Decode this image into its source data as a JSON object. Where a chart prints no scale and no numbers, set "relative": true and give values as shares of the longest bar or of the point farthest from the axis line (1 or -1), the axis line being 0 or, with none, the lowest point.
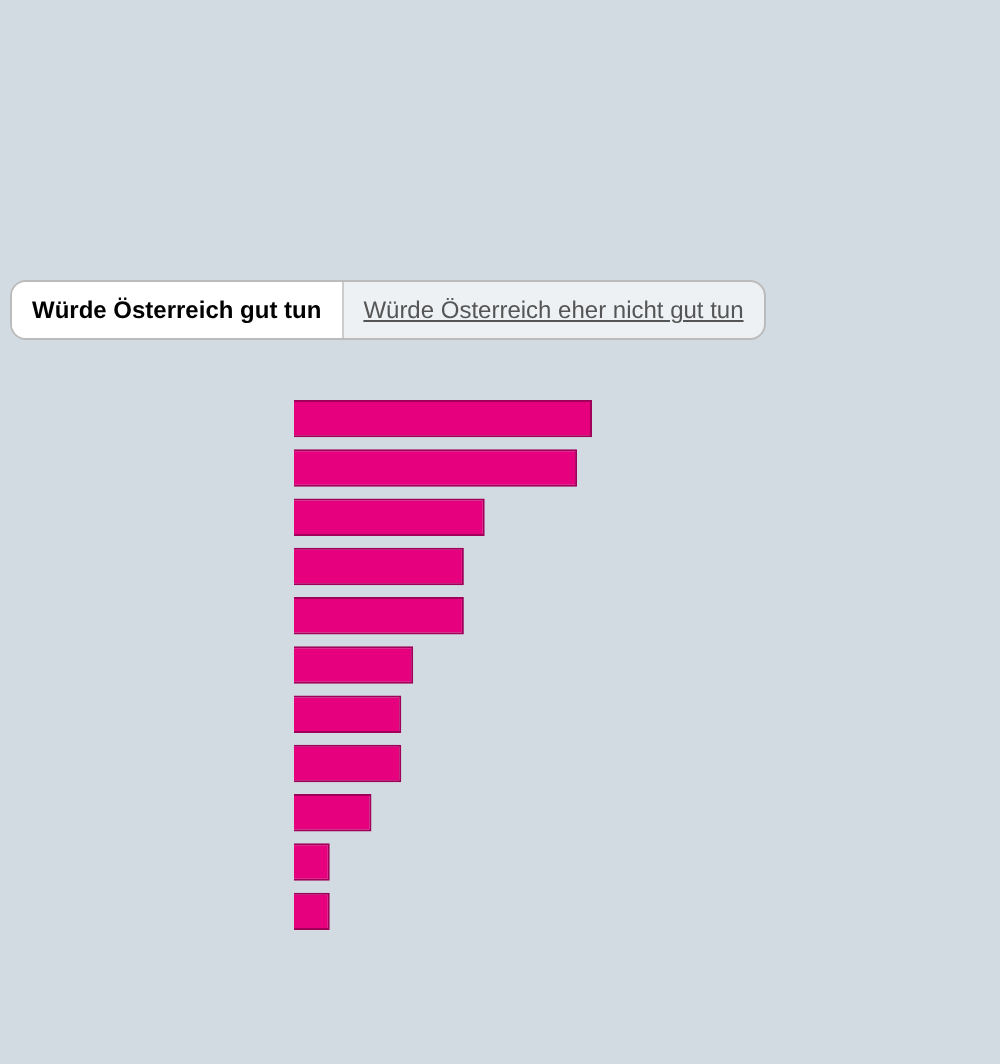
{
  "chart_data": {
    "type": "bar",
    "orientation": "horizontal",
    "relative": true,
    "categories": [
      null,
      null,
      null,
      null,
      null,
      null,
      null,
      null,
      null,
      null,
      null
    ],
    "values": [
      1,
      0.95,
      0.64,
      0.57,
      0.57,
      0.4,
      0.36,
      0.36,
      0.26,
      0.12,
      0.12
    ],
    "color": "#e6007e",
    "annotations": [
      "Würde Österreich gut tun",
      "Würde Österreich eher nicht gut tun"
    ]
  }
}
